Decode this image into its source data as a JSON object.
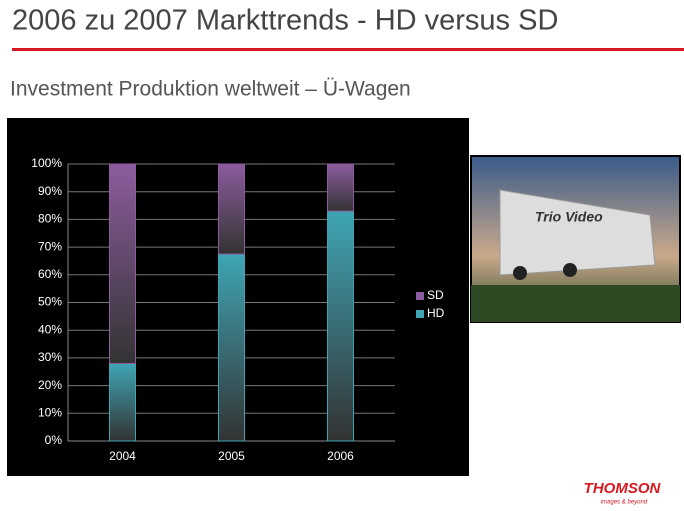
{
  "title": "2006 zu 2007 Markttrends - HD versus SD",
  "subtitle": "Investment Produktion weltweit – Ü-Wagen",
  "photo_text": "Trio Video",
  "logo": "THOMSON",
  "logo_tagline": "images & beyond",
  "chart_data": {
    "type": "stacked-bar",
    "categories": [
      "2004",
      "2005",
      "2006"
    ],
    "series": [
      {
        "name": "HD",
        "color": "#3fa5b5",
        "values": [
          28,
          67.5,
          83
        ]
      },
      {
        "name": "SD",
        "color": "#8c5c9e",
        "values": [
          72,
          32.5,
          17
        ]
      }
    ],
    "ylim": [
      0,
      100
    ],
    "yticks": [
      {
        "value": 0,
        "label": "0%"
      },
      {
        "value": 10,
        "label": "10%"
      },
      {
        "value": 20,
        "label": "20%"
      },
      {
        "value": 30,
        "label": "30%"
      },
      {
        "value": 40,
        "label": "40%"
      },
      {
        "value": 50,
        "label": "50%"
      },
      {
        "value": 60,
        "label": "60%"
      },
      {
        "value": 70,
        "label": "70%"
      },
      {
        "value": 80,
        "label": "80%"
      },
      {
        "value": 90,
        "label": "90%"
      },
      {
        "value": 100,
        "label": "100%"
      }
    ],
    "grid": true,
    "legend": "right"
  }
}
